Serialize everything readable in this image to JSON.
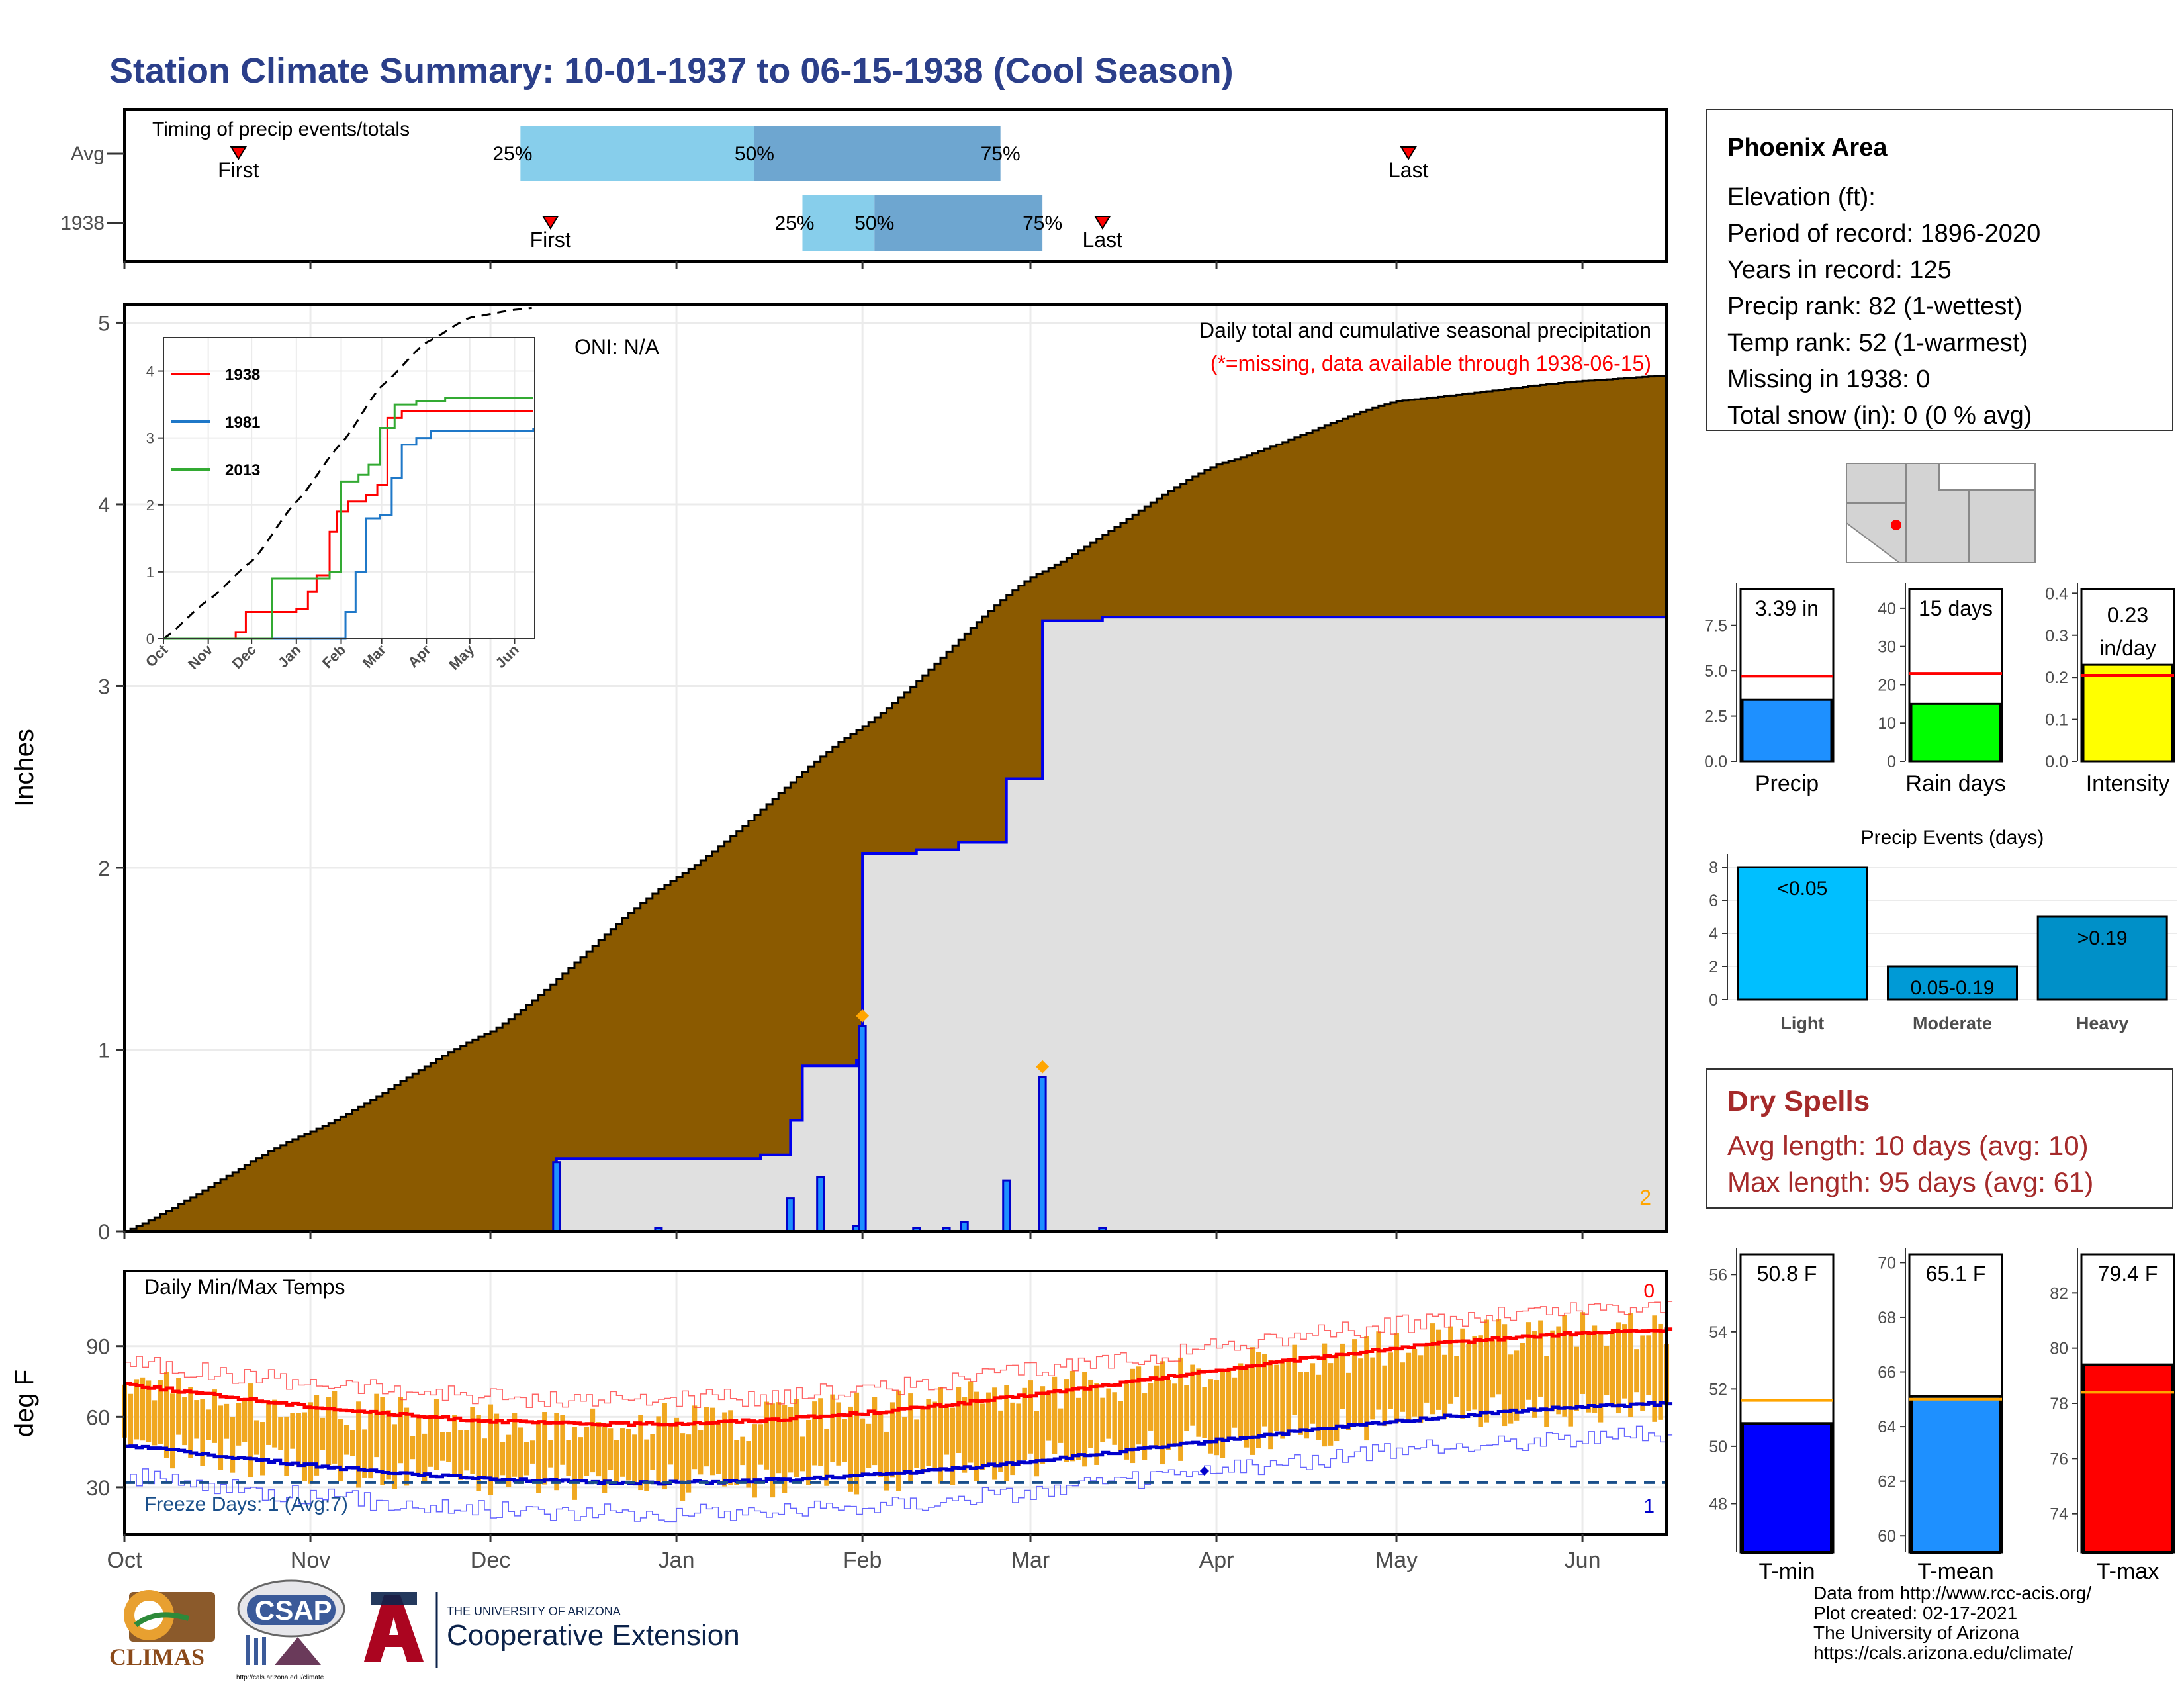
{
  "title": "Station Climate Summary: 10-01-1937 to 06-15-1938 (Cool Season)",
  "colors": {
    "title": "#2b3f8a",
    "precip_fill": "#8b5a00",
    "year_cum_line": "#0000ee",
    "dry_spell": "#a52a2a",
    "t_min": "#0000ff",
    "t_mean": "#1e90ff",
    "t_max": "#ff0000",
    "precip_bar": "#1e90ff",
    "raindays_bar": "#00ff00",
    "intensity_bar": "#ffff00",
    "avg_line": "#ff0000",
    "temp_avg_line": "#ffa500",
    "q1": "#87ceeb",
    "q2": "#6ea6d0"
  },
  "timing": {
    "title": "Timing of precip events/totals",
    "rows": [
      "Avg",
      "1938"
    ],
    "first_label": "First",
    "last_label": "Last",
    "q25": "25%",
    "q50": "50%",
    "q75": "75%",
    "avg": {
      "first": "1937-10-20",
      "q25": "1937-12-06",
      "q50": "1938-01-14",
      "q75": "1938-02-24",
      "last": "1938-05-03"
    },
    "year": {
      "first": "1937-12-11",
      "q25": "1938-01-22",
      "q50": "1938-02-03",
      "q75": "1938-03-03",
      "last": "1938-03-13"
    }
  },
  "precip_panel": {
    "ylabel": "Inches",
    "title": "Daily total and cumulative seasonal precipitation",
    "subtitle": "(*=missing, data available through 1938-06-15)",
    "oni": "ONI: N/A",
    "corner_count": "2",
    "x_ticks": [
      "Oct",
      "Nov",
      "Dec",
      "Jan",
      "Feb",
      "Mar",
      "Apr",
      "May",
      "Jun"
    ],
    "y_ticks": [
      "0",
      "1",
      "2",
      "3",
      "4",
      "5"
    ]
  },
  "inset": {
    "x_ticks": [
      "Oct",
      "Nov",
      "Dec",
      "Jan",
      "Feb",
      "Mar",
      "Apr",
      "May",
      "Jun"
    ],
    "y_ticks": [
      "0",
      "1",
      "2",
      "3",
      "4"
    ],
    "legend": [
      {
        "name": "1938",
        "color": "#ff0000"
      },
      {
        "name": "1981",
        "color": "#1f78c8"
      },
      {
        "name": "2013",
        "color": "#33aa33"
      }
    ]
  },
  "temp_panel": {
    "ylabel": "deg F",
    "title": "Daily Min/Max Temps",
    "freeze_label": "Freeze Days: 1 (Avg:7)",
    "top_count": "0",
    "bottom_count": "1",
    "y_ticks": [
      "30",
      "60",
      "90"
    ],
    "x_ticks": [
      "Oct",
      "Nov",
      "Dec",
      "Jan",
      "Feb",
      "Mar",
      "Apr",
      "May",
      "Jun"
    ]
  },
  "station": {
    "name": "Phoenix Area",
    "lines": [
      "Elevation (ft):",
      "Period of record: 1896-2020",
      "Years in record: 125",
      "Precip rank: 82 (1-wettest)",
      "Temp rank: 52 (1-warmest)",
      "Missing in 1938: 0",
      "Total snow (in): 0 (0 % avg)"
    ]
  },
  "summary_bars": {
    "precip": {
      "label": "Precip",
      "value_text": "3.39 in",
      "value": 3.39,
      "avg": 4.7,
      "ymax": 9.5,
      "ticks": [
        "0.0",
        "2.5",
        "5.0",
        "7.5"
      ]
    },
    "raindays": {
      "label": "Rain days",
      "value_text": "15 days",
      "value": 15,
      "avg": 23,
      "ymax": 45,
      "ticks": [
        "0",
        "10",
        "20",
        "30",
        "40"
      ]
    },
    "intensity": {
      "label": "Intensity",
      "value_text_1": "0.23",
      "value_text_2": "in/day",
      "value": 0.23,
      "avg": 0.205,
      "ymax": 0.41,
      "ticks": [
        "0.0",
        "0.1",
        "0.2",
        "0.3",
        "0.4"
      ]
    }
  },
  "events": {
    "title": "Precip Events (days)",
    "ticks": [
      "0",
      "2",
      "4",
      "6",
      "8"
    ],
    "bars": [
      {
        "category": "Light",
        "label": "<0.05",
        "value": 8,
        "color": "#00bfff"
      },
      {
        "category": "Moderate",
        "label": "0.05-0.19",
        "value": 2,
        "color": "#009ad6"
      },
      {
        "category": "Heavy",
        "label": ">0.19",
        "value": 5,
        "color": "#0090c8"
      }
    ]
  },
  "dry_spells": {
    "title": "Dry Spells",
    "avg": "Avg length: 10 days (avg: 10)",
    "max": "Max length: 95 days (avg: 61)"
  },
  "temp_bars": {
    "tmin": {
      "label": "T-min",
      "value_text": "50.8 F",
      "value": 50.8,
      "avg": 51.6,
      "ymin": 46.3,
      "ymax": 56.7,
      "ticks": [
        "48",
        "50",
        "52",
        "54",
        "56"
      ]
    },
    "tmean": {
      "label": "T-mean",
      "value_text": "65.1 F",
      "value": 65.1,
      "avg": 65.0,
      "ymin": 59.4,
      "ymax": 70.3,
      "ticks": [
        "60",
        "62",
        "64",
        "66",
        "68",
        "70"
      ]
    },
    "tmax": {
      "label": "T-max",
      "value_text": "79.4 F",
      "value": 79.4,
      "avg": 78.4,
      "ymin": 72.6,
      "ymax": 83.4,
      "ticks": [
        "74",
        "76",
        "78",
        "80",
        "82"
      ]
    }
  },
  "logos": {
    "climas": "CLIMAS",
    "csap": "CSAP",
    "csap_url": "http://cals.arizona.edu/climate",
    "ua_small": "THE UNIVERSITY OF ARIZONA",
    "ua_big": "Cooperative Extension"
  },
  "credits": [
    "Data from http://www.rcc-acis.org/",
    "Plot created: 02-17-2021",
    "The University of Arizona",
    "https://cals.arizona.edu/climate/"
  ],
  "chart_data": {
    "type": "area",
    "title": "Daily total and cumulative seasonal precipitation",
    "ylabel": "Inches",
    "xlim": [
      "1937-10-01",
      "1938-06-15"
    ],
    "ylim": [
      0,
      5.1
    ],
    "series": [
      {
        "name": "Average cumulative",
        "x": [
          "1937-10-01",
          "1937-11-01",
          "1937-12-01",
          "1938-01-01",
          "1938-02-01",
          "1938-03-01",
          "1938-04-01",
          "1938-05-01",
          "1938-06-01",
          "1938-06-15"
        ],
        "values": [
          0,
          0.55,
          1.1,
          1.95,
          2.78,
          3.6,
          4.22,
          4.57,
          4.68,
          4.71
        ]
      },
      {
        "name": "1938 cumulative",
        "x": [
          "1937-10-01",
          "1937-12-11",
          "1937-12-12",
          "1938-01-15",
          "1938-01-20",
          "1938-01-22",
          "1938-01-31",
          "1938-02-01",
          "1938-02-10",
          "1938-02-17",
          "1938-02-25",
          "1938-03-03",
          "1938-03-13",
          "1938-06-15"
        ],
        "values": [
          0,
          0,
          0.4,
          0.42,
          0.61,
          0.91,
          0.94,
          2.08,
          2.1,
          2.14,
          2.49,
          3.36,
          3.38,
          3.39
        ]
      },
      {
        "name": "1938 daily",
        "x": [
          "1937-12-12",
          "1937-12-29",
          "1938-01-20",
          "1938-01-25",
          "1938-01-31",
          "1938-02-01",
          "1938-02-10",
          "1938-02-15",
          "1938-02-18",
          "1938-02-25",
          "1938-03-03",
          "1938-03-13"
        ],
        "values": [
          0.38,
          0.02,
          0.18,
          0.3,
          0.03,
          1.13,
          0.02,
          0.02,
          0.05,
          0.28,
          0.85,
          0.02
        ]
      }
    ]
  }
}
